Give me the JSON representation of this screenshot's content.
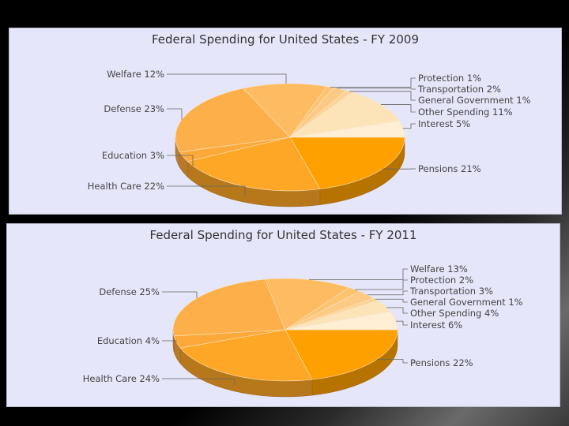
{
  "chart_data": [
    {
      "type": "pie",
      "title": "Federal Spending for United States - FY 2009",
      "slices": [
        {
          "label": "Pensions",
          "value": 21,
          "display": "Pensions 21%",
          "color": "#fea000"
        },
        {
          "label": "Health Care",
          "value": 22,
          "display": "Health Care 22%",
          "color": "#fea626"
        },
        {
          "label": "Education",
          "value": 3,
          "display": "Education 3%",
          "color": "#fda93a"
        },
        {
          "label": "Defense",
          "value": 23,
          "display": "Defense 23%",
          "color": "#fdb04a"
        },
        {
          "label": "Welfare",
          "value": 12,
          "display": "Welfare 12%",
          "color": "#fdbb62"
        },
        {
          "label": "Protection",
          "value": 1,
          "display": "Protection 1%",
          "color": "#fcc370"
        },
        {
          "label": "Transportation",
          "value": 2,
          "display": "Transportation 2%",
          "color": "#fcca84"
        },
        {
          "label": "General Government",
          "value": 1,
          "display": "General Government 1%",
          "color": "#fdd496"
        },
        {
          "label": "Other Spending",
          "value": 11,
          "display": "Other Spending 11%",
          "color": "#fde3b8"
        },
        {
          "label": "Interest",
          "value": 5,
          "display": "Interest 5%",
          "color": "#feeed4"
        }
      ]
    },
    {
      "type": "pie",
      "title": "Federal Spending for United States - FY 2011",
      "slices": [
        {
          "label": "Pensions",
          "value": 22,
          "display": "Pensions 22%",
          "color": "#fea000"
        },
        {
          "label": "Health Care",
          "value": 24,
          "display": "Health Care 24%",
          "color": "#fea626"
        },
        {
          "label": "Education",
          "value": 4,
          "display": "Education 4%",
          "color": "#fda93a"
        },
        {
          "label": "Defense",
          "value": 25,
          "display": "Defense 25%",
          "color": "#fdb04a"
        },
        {
          "label": "Welfare",
          "value": 13,
          "display": "Welfare 13%",
          "color": "#fdbb62"
        },
        {
          "label": "Protection",
          "value": 2,
          "display": "Protection 2%",
          "color": "#fcc370"
        },
        {
          "label": "Transportation",
          "value": 3,
          "display": "Transportation 3%",
          "color": "#fcca84"
        },
        {
          "label": "General Government",
          "value": 1,
          "display": "General Government 1%",
          "color": "#fdd496"
        },
        {
          "label": "Other Spending",
          "value": 4,
          "display": "Other Spending 4%",
          "color": "#fde3b8"
        },
        {
          "label": "Interest",
          "value": 6,
          "display": "Interest 6%",
          "color": "#feeed4"
        }
      ]
    }
  ]
}
